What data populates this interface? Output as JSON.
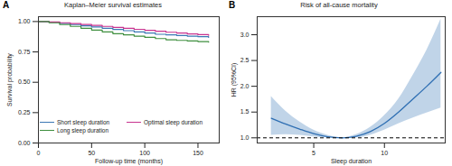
{
  "chart_data": [
    {
      "type": "line",
      "panel_label": "A",
      "title": "Kaplan–Meier survival estimates",
      "x_label": "Follow-up time (months)",
      "y_label": "Survival probability",
      "line_style": "step",
      "legend": "bottom",
      "x": [
        0,
        10,
        20,
        30,
        40,
        50,
        60,
        70,
        80,
        90,
        100,
        110,
        120,
        130,
        140,
        150,
        160
      ],
      "series": [
        {
          "name": "Short sleep duration",
          "color": "#3b78b4",
          "values": [
            1,
            0.995,
            0.985,
            0.975,
            0.965,
            0.955,
            0.945,
            0.935,
            0.925,
            0.915,
            0.905,
            0.895,
            0.89,
            0.885,
            0.88,
            0.875,
            0.87
          ]
        },
        {
          "name": "Optimal sleep duration",
          "color": "#c8338f",
          "values": [
            1,
            0.997,
            0.99,
            0.983,
            0.976,
            0.968,
            0.96,
            0.952,
            0.944,
            0.936,
            0.928,
            0.92,
            0.912,
            0.905,
            0.898,
            0.892,
            0.886
          ]
        },
        {
          "name": "Long sleep duration",
          "color": "#3f8f3f",
          "values": [
            1,
            0.99,
            0.975,
            0.96,
            0.945,
            0.93,
            0.915,
            0.9,
            0.89,
            0.88,
            0.87,
            0.86,
            0.85,
            0.845,
            0.84,
            0.835,
            0.83
          ]
        }
      ],
      "xlim": [
        0,
        170
      ],
      "xticks": [
        0,
        50,
        100,
        150
      ],
      "ylim": [
        0,
        1.04
      ],
      "yticks": [
        {
          "value": 0,
          "label": "0.00"
        },
        {
          "value": 0.25,
          "label": "0.25"
        },
        {
          "value": 0.5,
          "label": "0.50"
        },
        {
          "value": 0.75,
          "label": "0.75"
        },
        {
          "value": 1,
          "label": "1.00"
        }
      ]
    },
    {
      "type": "line_ci",
      "panel_label": "B",
      "title": "Risk of all-cause mortality",
      "x_label": "Sleep duration",
      "y_label": "HR (95%CI)",
      "x": [
        2,
        3,
        4,
        5,
        6,
        7,
        8,
        9,
        10,
        11,
        12,
        13,
        14
      ],
      "series": [
        {
          "color": "#2f6fb3",
          "values": [
            1.38,
            1.27,
            1.17,
            1.08,
            1.02,
            1.0,
            1.03,
            1.12,
            1.28,
            1.5,
            1.75,
            2.0,
            2.27
          ],
          "lower": [
            1.05,
            1.06,
            1.05,
            1.02,
            1.0,
            1.0,
            1.0,
            1.05,
            1.15,
            1.27,
            1.38,
            1.48,
            1.58
          ],
          "upper": [
            1.8,
            1.52,
            1.31,
            1.15,
            1.05,
            1.0,
            1.06,
            1.2,
            1.43,
            1.75,
            2.2,
            2.7,
            3.3
          ]
        }
      ],
      "reference_line": {
        "value": 1,
        "line_style": "dashed",
        "color": "#000000"
      },
      "xlim": [
        1,
        14.3
      ],
      "xticks": [
        5,
        10
      ],
      "ylim": [
        0.9,
        3.35
      ],
      "yticks": [
        {
          "value": 1,
          "label": "1.0"
        },
        {
          "value": 1.5,
          "label": "1.5"
        },
        {
          "value": 2,
          "label": "2.0"
        },
        {
          "value": 2.5,
          "label": "2.5"
        },
        {
          "value": 3,
          "label": "3.0"
        }
      ]
    }
  ]
}
